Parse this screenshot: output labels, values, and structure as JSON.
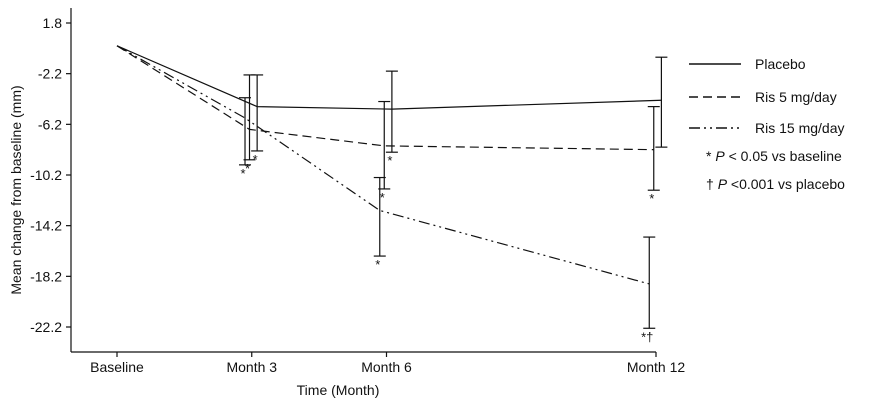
{
  "chart_data": {
    "type": "line",
    "xlabel": "Time (Month)",
    "ylabel": "Mean change from baseline (mm)",
    "categories": [
      "Baseline",
      "Month 3",
      "Month 6",
      "Month 12"
    ],
    "x_months": [
      0,
      3,
      6,
      12
    ],
    "yticks": [
      "1.8",
      "-2.2",
      "-6.2",
      "-10.2",
      "-14.2",
      "-18.2",
      "-22.2"
    ],
    "ylim": [
      -23.5,
      2.6
    ],
    "series": [
      {
        "name": "Placebo",
        "dash": "solid",
        "values": [
          0,
          -4.8,
          -5.0,
          -4.3
        ],
        "err_low": [
          null,
          -8.3,
          -8.4,
          -8.0
        ],
        "err_high": [
          null,
          -2.3,
          -2.0,
          -0.9
        ],
        "markers": [
          null,
          "*",
          "*",
          null
        ],
        "x_offset": 0.12
      },
      {
        "name": "Ris 5 mg/day",
        "dash": "dashed",
        "values": [
          0,
          -6.6,
          -7.9,
          -8.2
        ],
        "err_low": [
          null,
          -9.0,
          -11.3,
          -11.4
        ],
        "err_high": [
          null,
          -2.3,
          -4.4,
          -4.8
        ],
        "markers": [
          null,
          "*",
          "*",
          "*"
        ],
        "x_offset": -0.05
      },
      {
        "name": "Ris 15 mg/day",
        "dash": "dashdotdot",
        "values": [
          0,
          -5.7,
          -13.0,
          -18.8
        ],
        "err_low": [
          null,
          -9.4,
          -16.6,
          -22.3
        ],
        "err_high": [
          null,
          -4.1,
          -10.4,
          -15.1
        ],
        "markers": [
          null,
          "*",
          "*",
          "*†"
        ],
        "x_offset": -0.15
      }
    ],
    "legend": {
      "position": "right",
      "items": [
        "Placebo",
        "Ris 5 mg/day",
        "Ris 15 mg/day"
      ],
      "notes": [
        {
          "symbol": "*",
          "italic": "P",
          "text": " < 0.05 vs baseline"
        },
        {
          "symbol": "†",
          "italic": "P",
          "text": " <0.001 vs placebo"
        }
      ]
    },
    "grid": false
  }
}
